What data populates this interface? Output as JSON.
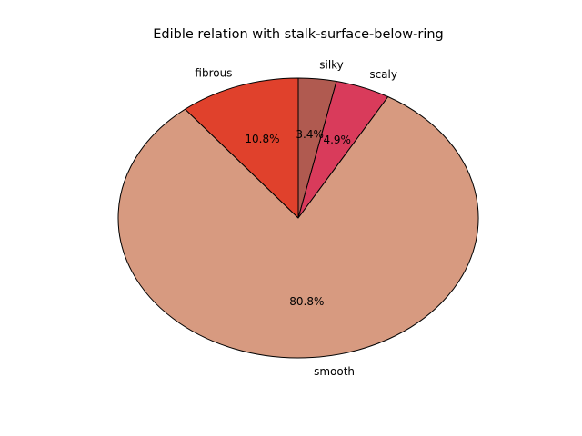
{
  "chart_data": {
    "type": "pie",
    "title": "Edible relation with stalk-surface-below-ring",
    "start_angle_deg": 90,
    "direction": "clockwise",
    "slices": [
      {
        "label": "silky",
        "value": 3.4,
        "pct_label": "3.4%",
        "color": "#b05a50"
      },
      {
        "label": "scaly",
        "value": 4.9,
        "pct_label": "4.9%",
        "color": "#d93b5b"
      },
      {
        "label": "smooth",
        "value": 80.8,
        "pct_label": "80.8%",
        "color": "#d79a80"
      },
      {
        "label": "fibrous",
        "value": 10.8,
        "pct_label": "10.8%",
        "color": "#e0412c"
      }
    ]
  }
}
